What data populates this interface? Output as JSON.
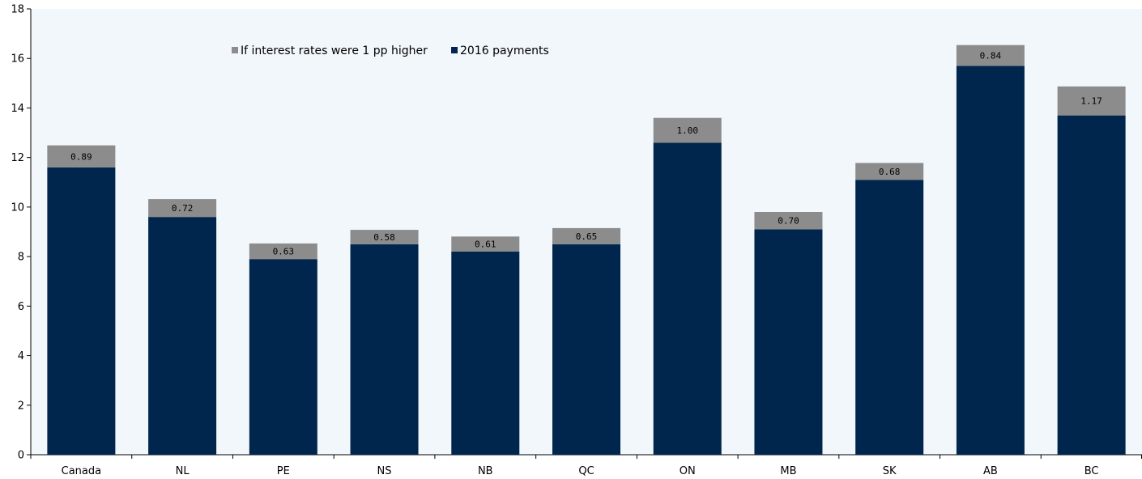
{
  "chart_data": {
    "type": "bar",
    "stacked": true,
    "categories": [
      "Canada",
      "NL",
      "PE",
      "NS",
      "NB",
      "QC",
      "ON",
      "MB",
      "SK",
      "AB",
      "BC"
    ],
    "series": [
      {
        "name": "2016 payments",
        "color": "#00264d",
        "values": [
          11.6,
          9.6,
          7.9,
          8.5,
          8.2,
          8.5,
          12.6,
          9.1,
          11.1,
          15.7,
          13.7
        ]
      },
      {
        "name": "If interest rates were 1 pp higher",
        "color": "#8c8c8c",
        "values": [
          0.89,
          0.72,
          0.63,
          0.58,
          0.61,
          0.65,
          1.0,
          0.7,
          0.68,
          0.84,
          1.17
        ],
        "data_labels": [
          "0.89",
          "0.72",
          "0.63",
          "0.58",
          "0.61",
          "0.65",
          "1.00",
          "0.70",
          "0.68",
          "0.84",
          "1.17"
        ]
      }
    ],
    "legend_order": [
      "If interest rates were 1 pp higher",
      "2016 payments"
    ],
    "legend_position": "top-left",
    "ylim": [
      0,
      18
    ],
    "yticks": [
      "0",
      "2",
      "4",
      "6",
      "8",
      "10",
      "12",
      "14",
      "16",
      "18"
    ],
    "grid": false,
    "plot_background": "#f2f7fc"
  }
}
